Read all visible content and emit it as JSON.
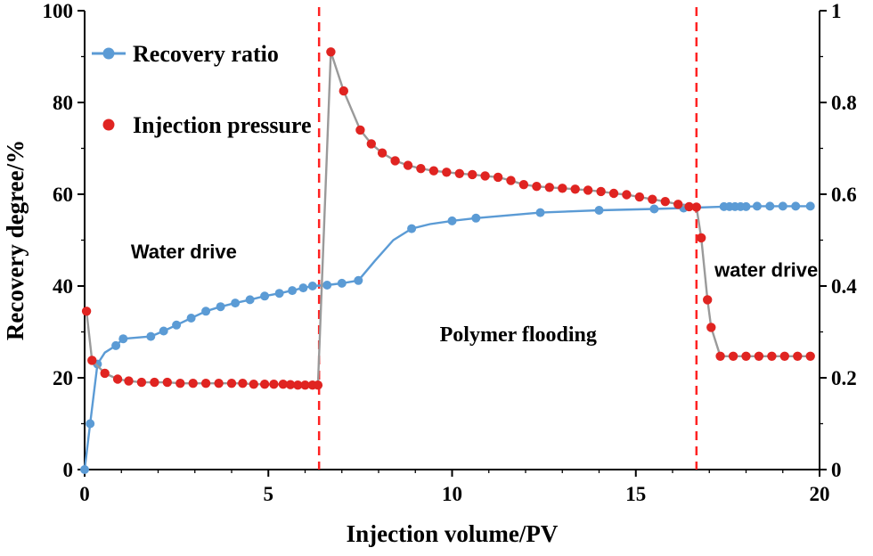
{
  "chart_data": {
    "type": "line",
    "title": "",
    "xlabel": "Injection volume/PV",
    "ylabel_left": "Recovery degree/%",
    "ylabel_right": "",
    "xlim": [
      0,
      20
    ],
    "ylim_left": [
      0,
      100
    ],
    "ylim_right": [
      0,
      1
    ],
    "xticks": [
      0,
      5,
      10,
      15,
      20
    ],
    "yticks_left": [
      0,
      20,
      40,
      60,
      80,
      100
    ],
    "yticks_right": [
      0,
      0.2,
      0.4,
      0.6,
      0.8,
      1
    ],
    "x_minor_step": 1,
    "y_left_minor_step": 10,
    "y_right_minor_step": 0.1,
    "grid": false,
    "colors": {
      "recovery": "#5b9bd5",
      "pressure_marker": "#e02421",
      "pressure_line": "#9a9a9a",
      "divider": "#ff2222",
      "axis": "#000000"
    },
    "legend": {
      "position": "top-left",
      "entries": [
        {
          "label": "Recovery ratio",
          "color": "#5b9bd5",
          "marker": "line-dot"
        },
        {
          "label": "Injection pressure",
          "color": "#e02421",
          "marker": "dot"
        }
      ]
    },
    "vlines": [
      {
        "x": 6.38,
        "color": "#ff2222",
        "style": "dashed"
      },
      {
        "x": 16.65,
        "color": "#ff2222",
        "style": "dashed"
      }
    ],
    "annotations": [
      {
        "text": "Water drive",
        "x": 2.7,
        "y": 46,
        "font_style": "sans"
      },
      {
        "text": "Polymer flooding",
        "x": 11.8,
        "y": 28,
        "font_style": "serif"
      },
      {
        "text": "water drive",
        "x": 18.55,
        "y": 42,
        "font_style": "sans"
      }
    ],
    "series": [
      {
        "name": "Recovery ratio",
        "axis": "left",
        "color": "#5b9bd5",
        "line_color": "#5b9bd5",
        "marker_radius": 5,
        "points": [
          [
            0,
            0
          ],
          [
            0.15,
            10
          ],
          [
            0.35,
            23
          ],
          [
            0.85,
            27
          ],
          [
            1.05,
            28.5
          ],
          [
            1.8,
            29
          ],
          [
            2.15,
            30.2
          ],
          [
            2.5,
            31.5
          ],
          [
            2.9,
            33
          ],
          [
            3.3,
            34.5
          ],
          [
            3.7,
            35.5
          ],
          [
            4.1,
            36.3
          ],
          [
            4.5,
            37
          ],
          [
            4.9,
            37.8
          ],
          [
            5.3,
            38.4
          ],
          [
            5.65,
            39
          ],
          [
            5.95,
            39.6
          ],
          [
            6.2,
            40
          ],
          [
            6.6,
            40.2
          ],
          [
            7.0,
            40.6
          ],
          [
            7.45,
            41.2
          ],
          [
            8.9,
            52.5
          ],
          [
            10.0,
            54.2
          ],
          [
            10.65,
            54.8
          ],
          [
            12.4,
            56
          ],
          [
            14.0,
            56.5
          ],
          [
            15.5,
            56.8
          ],
          [
            16.3,
            57
          ],
          [
            17.4,
            57.3
          ],
          [
            17.55,
            57.3
          ],
          [
            17.7,
            57.3
          ],
          [
            17.85,
            57.3
          ],
          [
            18.0,
            57.3
          ],
          [
            18.3,
            57.4
          ],
          [
            18.65,
            57.4
          ],
          [
            19.0,
            57.4
          ],
          [
            19.35,
            57.4
          ],
          [
            19.75,
            57.4
          ]
        ],
        "extra_line_points": [
          [
            0.55,
            25.5
          ],
          [
            7.9,
            45.5
          ],
          [
            8.4,
            50
          ],
          [
            9.4,
            53.5
          ]
        ]
      },
      {
        "name": "Injection pressure",
        "axis": "right",
        "color": "#e02421",
        "line_color": "#9a9a9a",
        "marker_radius": 5.2,
        "points": [
          [
            0.05,
            0.345
          ],
          [
            0.2,
            0.238
          ],
          [
            0.55,
            0.21
          ],
          [
            0.9,
            0.197
          ],
          [
            1.2,
            0.193
          ],
          [
            1.55,
            0.19
          ],
          [
            1.9,
            0.19
          ],
          [
            2.25,
            0.19
          ],
          [
            2.6,
            0.188
          ],
          [
            2.95,
            0.188
          ],
          [
            3.3,
            0.188
          ],
          [
            3.65,
            0.188
          ],
          [
            4.0,
            0.188
          ],
          [
            4.3,
            0.188
          ],
          [
            4.6,
            0.186
          ],
          [
            4.9,
            0.186
          ],
          [
            5.15,
            0.186
          ],
          [
            5.4,
            0.186
          ],
          [
            5.6,
            0.185
          ],
          [
            5.8,
            0.184
          ],
          [
            6.0,
            0.184
          ],
          [
            6.2,
            0.184
          ],
          [
            6.35,
            0.184
          ],
          [
            6.7,
            0.91
          ],
          [
            7.05,
            0.825
          ],
          [
            7.5,
            0.74
          ],
          [
            7.8,
            0.71
          ],
          [
            8.1,
            0.69
          ],
          [
            8.45,
            0.673
          ],
          [
            8.8,
            0.663
          ],
          [
            9.15,
            0.656
          ],
          [
            9.5,
            0.651
          ],
          [
            9.85,
            0.648
          ],
          [
            10.2,
            0.645
          ],
          [
            10.55,
            0.643
          ],
          [
            10.9,
            0.64
          ],
          [
            11.25,
            0.637
          ],
          [
            11.6,
            0.63
          ],
          [
            11.95,
            0.621
          ],
          [
            12.3,
            0.617
          ],
          [
            12.65,
            0.615
          ],
          [
            13.0,
            0.613
          ],
          [
            13.35,
            0.611
          ],
          [
            13.7,
            0.609
          ],
          [
            14.05,
            0.606
          ],
          [
            14.4,
            0.602
          ],
          [
            14.75,
            0.599
          ],
          [
            15.1,
            0.594
          ],
          [
            15.45,
            0.589
          ],
          [
            15.8,
            0.584
          ],
          [
            16.15,
            0.578
          ],
          [
            16.45,
            0.573
          ],
          [
            16.65,
            0.572
          ],
          [
            16.78,
            0.505
          ],
          [
            16.95,
            0.37
          ],
          [
            17.05,
            0.31
          ],
          [
            17.3,
            0.247
          ],
          [
            17.65,
            0.247
          ],
          [
            18.0,
            0.247
          ],
          [
            18.35,
            0.247
          ],
          [
            18.7,
            0.247
          ],
          [
            19.05,
            0.247
          ],
          [
            19.4,
            0.247
          ],
          [
            19.75,
            0.247
          ]
        ],
        "extra_line_points": []
      }
    ]
  }
}
